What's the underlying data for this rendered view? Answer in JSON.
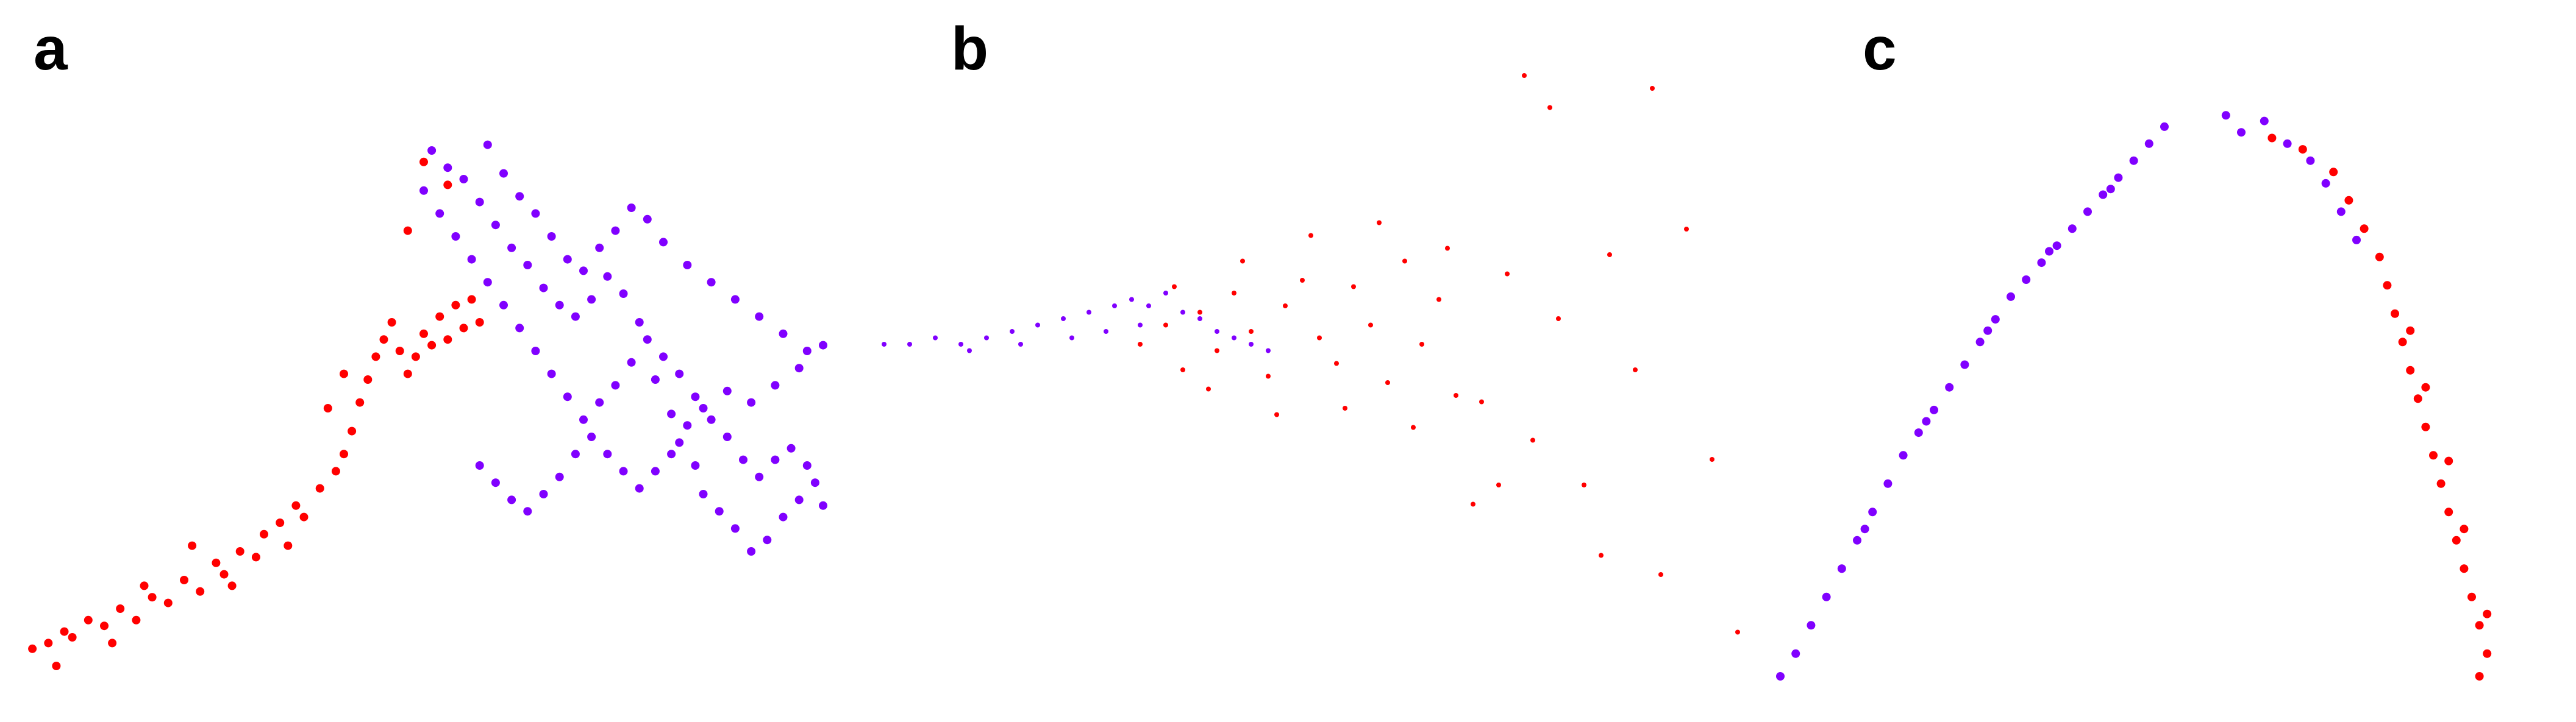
{
  "panel_labels": [
    "a",
    "b",
    "c"
  ],
  "colors": {
    "series_0": "#ff0000",
    "series_1": "#8000ff"
  },
  "chart_data": [
    {
      "panel": "a",
      "type": "scatter",
      "title": "",
      "xlabel": "",
      "ylabel": "",
      "grid": false,
      "legend": "none",
      "xlim": [
        0,
        10
      ],
      "ylim": [
        0,
        10
      ],
      "series": [
        {
          "color": "#ff0000",
          "points": [
            [
              0.1,
              0.8
            ],
            [
              0.3,
              0.9
            ],
            [
              0.5,
              1.1
            ],
            [
              0.6,
              1.0
            ],
            [
              0.8,
              1.3
            ],
            [
              1.0,
              1.2
            ],
            [
              1.2,
              1.5
            ],
            [
              1.4,
              1.3
            ],
            [
              1.6,
              1.7
            ],
            [
              1.8,
              1.6
            ],
            [
              2.0,
              2.0
            ],
            [
              2.2,
              1.8
            ],
            [
              2.4,
              2.3
            ],
            [
              2.5,
              2.1
            ],
            [
              2.7,
              2.5
            ],
            [
              2.9,
              2.4
            ],
            [
              3.0,
              2.8
            ],
            [
              3.2,
              3.0
            ],
            [
              3.4,
              3.3
            ],
            [
              3.5,
              3.1
            ],
            [
              3.7,
              3.6
            ],
            [
              3.9,
              3.9
            ],
            [
              4.0,
              4.2
            ],
            [
              4.1,
              4.6
            ],
            [
              4.2,
              5.1
            ],
            [
              4.3,
              5.5
            ],
            [
              4.4,
              5.9
            ],
            [
              4.5,
              6.2
            ],
            [
              4.6,
              6.5
            ],
            [
              4.7,
              6.0
            ],
            [
              4.8,
              5.6
            ],
            [
              4.9,
              5.9
            ],
            [
              5.0,
              6.3
            ],
            [
              5.1,
              6.1
            ],
            [
              5.2,
              6.6
            ],
            [
              5.3,
              6.2
            ],
            [
              5.4,
              6.8
            ],
            [
              5.5,
              6.4
            ],
            [
              5.6,
              6.9
            ],
            [
              5.7,
              6.5
            ],
            [
              3.8,
              5.0
            ],
            [
              4.0,
              5.6
            ],
            [
              0.4,
              0.5
            ],
            [
              1.1,
              0.9
            ],
            [
              2.6,
              1.9
            ],
            [
              3.3,
              2.6
            ],
            [
              1.5,
              1.9
            ],
            [
              2.1,
              2.6
            ],
            [
              4.8,
              8.1
            ],
            [
              5.0,
              9.3
            ],
            [
              5.3,
              8.9
            ]
          ]
        },
        {
          "color": "#8000ff",
          "points": [
            [
              5.1,
              9.5
            ],
            [
              5.3,
              9.2
            ],
            [
              5.5,
              9.0
            ],
            [
              5.7,
              8.6
            ],
            [
              5.9,
              8.2
            ],
            [
              6.1,
              7.8
            ],
            [
              6.3,
              7.5
            ],
            [
              6.5,
              7.1
            ],
            [
              6.7,
              6.8
            ],
            [
              6.9,
              6.6
            ],
            [
              7.1,
              6.9
            ],
            [
              7.3,
              7.3
            ],
            [
              7.5,
              7.0
            ],
            [
              7.7,
              6.5
            ],
            [
              7.9,
              5.5
            ],
            [
              8.1,
              4.9
            ],
            [
              8.2,
              4.4
            ],
            [
              8.4,
              4.0
            ],
            [
              8.5,
              3.5
            ],
            [
              8.7,
              3.2
            ],
            [
              8.9,
              2.9
            ],
            [
              9.1,
              2.5
            ],
            [
              9.3,
              2.7
            ],
            [
              9.5,
              3.1
            ],
            [
              9.7,
              3.4
            ],
            [
              9.9,
              3.7
            ],
            [
              10.0,
              3.3
            ],
            [
              9.8,
              4.0
            ],
            [
              9.6,
              4.3
            ],
            [
              9.4,
              4.1
            ],
            [
              9.2,
              3.8
            ],
            [
              9.0,
              4.1
            ],
            [
              8.8,
              4.5
            ],
            [
              8.6,
              4.8
            ],
            [
              8.4,
              5.2
            ],
            [
              8.2,
              5.6
            ],
            [
              8.0,
              5.9
            ],
            [
              7.8,
              6.2
            ],
            [
              7.6,
              5.8
            ],
            [
              7.4,
              5.4
            ],
            [
              7.2,
              5.1
            ],
            [
              7.0,
              4.8
            ],
            [
              6.8,
              5.2
            ],
            [
              6.6,
              5.6
            ],
            [
              6.4,
              6.0
            ],
            [
              6.2,
              6.4
            ],
            [
              6.0,
              6.8
            ],
            [
              5.8,
              7.2
            ],
            [
              5.6,
              7.6
            ],
            [
              5.4,
              8.0
            ],
            [
              5.2,
              8.4
            ],
            [
              5.0,
              8.8
            ],
            [
              5.8,
              9.6
            ],
            [
              6.0,
              9.1
            ],
            [
              6.2,
              8.7
            ],
            [
              6.4,
              8.4
            ],
            [
              6.6,
              8.0
            ],
            [
              6.8,
              7.6
            ],
            [
              7.0,
              7.4
            ],
            [
              7.2,
              7.8
            ],
            [
              7.4,
              8.1
            ],
            [
              7.6,
              8.5
            ],
            [
              7.8,
              8.3
            ],
            [
              8.0,
              7.9
            ],
            [
              8.3,
              7.5
            ],
            [
              8.6,
              7.2
            ],
            [
              8.9,
              6.9
            ],
            [
              9.2,
              6.6
            ],
            [
              9.5,
              6.3
            ],
            [
              9.8,
              6.0
            ],
            [
              10.0,
              6.1
            ],
            [
              9.7,
              5.7
            ],
            [
              9.4,
              5.4
            ],
            [
              9.1,
              5.1
            ],
            [
              8.8,
              5.3
            ],
            [
              8.5,
              5.0
            ],
            [
              8.3,
              4.7
            ],
            [
              8.1,
              4.2
            ],
            [
              7.9,
              3.9
            ],
            [
              7.7,
              3.6
            ],
            [
              7.5,
              3.9
            ],
            [
              7.3,
              4.2
            ],
            [
              7.1,
              4.5
            ],
            [
              6.9,
              4.2
            ],
            [
              6.7,
              3.8
            ],
            [
              6.5,
              3.5
            ],
            [
              6.3,
              3.2
            ],
            [
              6.1,
              3.4
            ],
            [
              5.9,
              3.7
            ],
            [
              5.7,
              4.0
            ]
          ]
        }
      ]
    },
    {
      "panel": "b",
      "type": "scatter",
      "title": "",
      "xlabel": "",
      "ylabel": "",
      "grid": false,
      "legend": "none",
      "xlim": [
        0,
        10
      ],
      "ylim": [
        0,
        10
      ],
      "series": [
        {
          "color": "#ff0000",
          "points": [
            [
              3.0,
              5.0
            ],
            [
              3.3,
              5.3
            ],
            [
              3.5,
              4.6
            ],
            [
              3.7,
              5.5
            ],
            [
              3.9,
              4.9
            ],
            [
              4.1,
              5.8
            ],
            [
              4.3,
              5.2
            ],
            [
              4.5,
              4.5
            ],
            [
              4.7,
              5.6
            ],
            [
              4.9,
              6.0
            ],
            [
              5.1,
              5.1
            ],
            [
              5.3,
              4.7
            ],
            [
              5.5,
              5.9
            ],
            [
              5.7,
              5.3
            ],
            [
              5.9,
              4.4
            ],
            [
              6.1,
              6.3
            ],
            [
              6.3,
              5.0
            ],
            [
              6.5,
              5.7
            ],
            [
              6.7,
              4.2
            ],
            [
              3.4,
              5.9
            ],
            [
              3.8,
              4.3
            ],
            [
              4.2,
              6.3
            ],
            [
              4.6,
              3.9
            ],
            [
              5.0,
              6.7
            ],
            [
              5.4,
              4.0
            ],
            [
              5.8,
              6.9
            ],
            [
              6.2,
              3.7
            ],
            [
              6.6,
              6.5
            ],
            [
              7.0,
              4.1
            ],
            [
              7.3,
              6.1
            ],
            [
              7.6,
              3.5
            ],
            [
              7.9,
              5.4
            ],
            [
              8.2,
              2.8
            ],
            [
              8.5,
              6.4
            ],
            [
              8.8,
              4.6
            ],
            [
              9.1,
              1.4
            ],
            [
              9.4,
              6.8
            ],
            [
              9.7,
              3.2
            ],
            [
              10.0,
              0.5
            ],
            [
              6.9,
              2.5
            ],
            [
              7.2,
              2.8
            ],
            [
              7.5,
              9.2
            ],
            [
              7.8,
              8.7
            ],
            [
              8.4,
              1.7
            ],
            [
              9.0,
              9.0
            ]
          ]
        },
        {
          "color": "#8000ff",
          "points": [
            [
              0.0,
              5.0
            ],
            [
              0.3,
              5.0
            ],
            [
              0.6,
              5.1
            ],
            [
              0.9,
              5.0
            ],
            [
              1.2,
              5.1
            ],
            [
              1.5,
              5.2
            ],
            [
              1.8,
              5.3
            ],
            [
              2.1,
              5.4
            ],
            [
              2.4,
              5.5
            ],
            [
              2.7,
              5.6
            ],
            [
              2.9,
              5.7
            ],
            [
              3.1,
              5.6
            ],
            [
              3.3,
              5.8
            ],
            [
              3.5,
              5.5
            ],
            [
              3.7,
              5.4
            ],
            [
              3.9,
              5.2
            ],
            [
              4.1,
              5.1
            ],
            [
              4.3,
              5.0
            ],
            [
              4.5,
              4.9
            ],
            [
              1.0,
              4.9
            ],
            [
              1.6,
              5.0
            ],
            [
              2.2,
              5.1
            ],
            [
              2.6,
              5.2
            ],
            [
              3.0,
              5.3
            ]
          ]
        }
      ]
    },
    {
      "panel": "c",
      "type": "scatter",
      "title": "",
      "xlabel": "",
      "ylabel": "",
      "grid": false,
      "legend": "none",
      "xlim": [
        0,
        10
      ],
      "ylim": [
        0,
        10
      ],
      "series": [
        {
          "color": "#8000ff",
          "points": [
            [
              0.0,
              0.0
            ],
            [
              0.2,
              0.4
            ],
            [
              0.4,
              0.9
            ],
            [
              0.6,
              1.4
            ],
            [
              0.8,
              1.9
            ],
            [
              1.0,
              2.4
            ],
            [
              1.2,
              2.9
            ],
            [
              1.4,
              3.4
            ],
            [
              1.6,
              3.9
            ],
            [
              1.8,
              4.3
            ],
            [
              2.0,
              4.7
            ],
            [
              2.2,
              5.1
            ],
            [
              2.4,
              5.5
            ],
            [
              2.6,
              5.9
            ],
            [
              2.8,
              6.3
            ],
            [
              3.0,
              6.7
            ],
            [
              3.2,
              7.0
            ],
            [
              3.4,
              7.3
            ],
            [
              3.6,
              7.6
            ],
            [
              3.8,
              7.9
            ],
            [
              4.0,
              8.2
            ],
            [
              4.2,
              8.5
            ],
            [
              4.4,
              8.8
            ],
            [
              4.6,
              9.1
            ],
            [
              4.8,
              9.4
            ],
            [
              5.0,
              9.7
            ],
            [
              1.1,
              2.6
            ],
            [
              1.9,
              4.5
            ],
            [
              2.7,
              6.1
            ],
            [
              3.5,
              7.5
            ],
            [
              4.3,
              8.6
            ],
            [
              5.8,
              9.9
            ],
            [
              6.0,
              9.6
            ],
            [
              6.3,
              9.8
            ],
            [
              6.6,
              9.4
            ],
            [
              6.9,
              9.1
            ],
            [
              7.1,
              8.7
            ],
            [
              7.3,
              8.2
            ],
            [
              7.5,
              7.7
            ]
          ]
        },
        {
          "color": "#ff0000",
          "points": [
            [
              6.4,
              9.5
            ],
            [
              6.8,
              9.3
            ],
            [
              7.2,
              8.9
            ],
            [
              7.4,
              8.4
            ],
            [
              7.6,
              7.9
            ],
            [
              7.8,
              7.4
            ],
            [
              7.9,
              6.9
            ],
            [
              8.0,
              6.4
            ],
            [
              8.1,
              5.9
            ],
            [
              8.2,
              5.4
            ],
            [
              8.3,
              4.9
            ],
            [
              8.4,
              4.4
            ],
            [
              8.5,
              3.9
            ],
            [
              8.6,
              3.4
            ],
            [
              8.7,
              2.9
            ],
            [
              8.8,
              2.4
            ],
            [
              8.9,
              1.9
            ],
            [
              9.0,
              1.4
            ],
            [
              9.1,
              0.9
            ],
            [
              9.2,
              0.4
            ],
            [
              9.1,
              0.0
            ],
            [
              9.2,
              1.1
            ],
            [
              8.9,
              2.6
            ],
            [
              8.7,
              3.8
            ],
            [
              8.4,
              5.1
            ],
            [
              8.2,
              6.1
            ]
          ]
        }
      ]
    }
  ]
}
